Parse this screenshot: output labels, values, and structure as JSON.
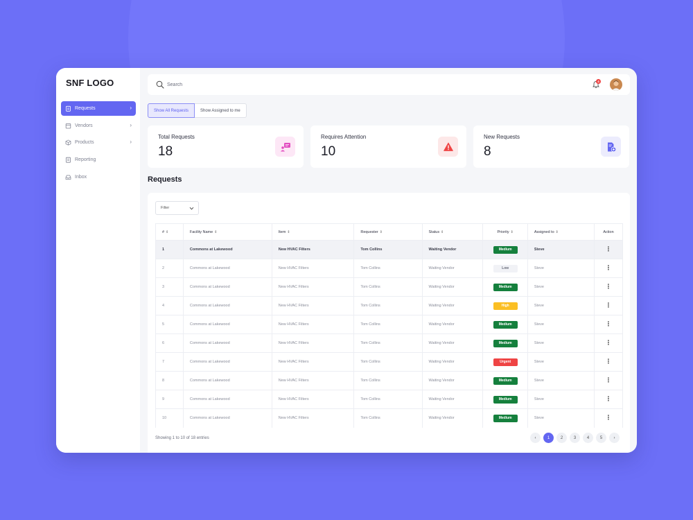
{
  "brand": {
    "logo": "SNF LOGO"
  },
  "sidebar": {
    "items": [
      {
        "label": "Requests",
        "icon": "clipboard-icon",
        "active": true,
        "chevron": true
      },
      {
        "label": "Vendors",
        "icon": "store-icon",
        "active": false,
        "chevron": true
      },
      {
        "label": "Products",
        "icon": "box-icon",
        "active": false,
        "chevron": true
      },
      {
        "label": "Reporting",
        "icon": "report-icon",
        "active": false,
        "chevron": false
      },
      {
        "label": "Inbox",
        "icon": "inbox-icon",
        "active": false,
        "chevron": false
      }
    ]
  },
  "header": {
    "search_placeholder": "Search",
    "notification_count": "4"
  },
  "tabs": [
    {
      "label": "Show All Requests",
      "active": true
    },
    {
      "label": "Show Assigned to me",
      "active": false
    }
  ],
  "cards": [
    {
      "label": "Total Requests",
      "value": "18",
      "icon": "chat-icon",
      "icon_bg": "#fde7f6",
      "icon_color": "#e24cc0"
    },
    {
      "label": "Requires Attention",
      "value": "10",
      "icon": "warning-icon",
      "icon_bg": "#fde8e8",
      "icon_color": "#ef4444"
    },
    {
      "label": "New Requests",
      "value": "8",
      "icon": "new-document-icon",
      "icon_bg": "#ececfd",
      "icon_color": "#6366f1"
    }
  ],
  "section_title": "Requests",
  "filter": {
    "label": "Filter"
  },
  "table": {
    "columns": [
      "#",
      "Facility Name",
      "Item",
      "Requester",
      "Status",
      "Priority",
      "Assigned to",
      "Action"
    ],
    "rows": [
      {
        "num": "1",
        "facility": "Commons at Lakewood",
        "item": "New HVAC Filters",
        "requester": "Tom Collins",
        "status": "Waiting Vendor",
        "priority": "Medium",
        "assigned": "Steve"
      },
      {
        "num": "2",
        "facility": "Commons at Lakewood",
        "item": "New HVAC Filters",
        "requester": "Tom Collins",
        "status": "Waiting Vendor",
        "priority": "Low",
        "assigned": "Steve"
      },
      {
        "num": "3",
        "facility": "Commons at Lakewood",
        "item": "New HVAC Filters",
        "requester": "Tom Collins",
        "status": "Waiting Vendor",
        "priority": "Medium",
        "assigned": "Steve"
      },
      {
        "num": "4",
        "facility": "Commons at Lakewood",
        "item": "New HVAC Filters",
        "requester": "Tom Collins",
        "status": "Waiting Vendor",
        "priority": "High",
        "assigned": "Steve"
      },
      {
        "num": "5",
        "facility": "Commons at Lakewood",
        "item": "New HVAC Filters",
        "requester": "Tom Collins",
        "status": "Waiting Vendor",
        "priority": "Medium",
        "assigned": "Steve"
      },
      {
        "num": "6",
        "facility": "Commons at Lakewood",
        "item": "New HVAC Filters",
        "requester": "Tom Collins",
        "status": "Waiting Vendor",
        "priority": "Medium",
        "assigned": "Steve"
      },
      {
        "num": "7",
        "facility": "Commons at Lakewood",
        "item": "New HVAC Filters",
        "requester": "Tom Collins",
        "status": "Waiting Vendor",
        "priority": "Urgent",
        "assigned": "Steve"
      },
      {
        "num": "8",
        "facility": "Commons at Lakewood",
        "item": "New HVAC Filters",
        "requester": "Tom Collins",
        "status": "Waiting Vendor",
        "priority": "Medium",
        "assigned": "Steve"
      },
      {
        "num": "9",
        "facility": "Commons at Lakewood",
        "item": "New HVAC Filters",
        "requester": "Tom Collins",
        "status": "Waiting Vendor",
        "priority": "Medium",
        "assigned": "Steve"
      },
      {
        "num": "10",
        "facility": "Commons at Lakewood",
        "item": "New HVAC Filters",
        "requester": "Tom Collins",
        "status": "Waiting Vendor",
        "priority": "Medium",
        "assigned": "Steve"
      }
    ]
  },
  "priority_colors": {
    "Medium": {
      "bg": "#15803d",
      "fg": "#ffffff"
    },
    "Low": {
      "bg": "#f1f2f6",
      "fg": "#6b6e7c"
    },
    "High": {
      "bg": "#fbbf24",
      "fg": "#ffffff"
    },
    "Urgent": {
      "bg": "#ef4444",
      "fg": "#ffffff"
    }
  },
  "footer": {
    "summary": "Showing 1 to 10 of 18 entries"
  },
  "pagination": {
    "pages": [
      "1",
      "2",
      "3",
      "4",
      "5"
    ],
    "current": "1"
  },
  "colors": {
    "accent": "#6366f1",
    "background": "#6c6ff7"
  }
}
